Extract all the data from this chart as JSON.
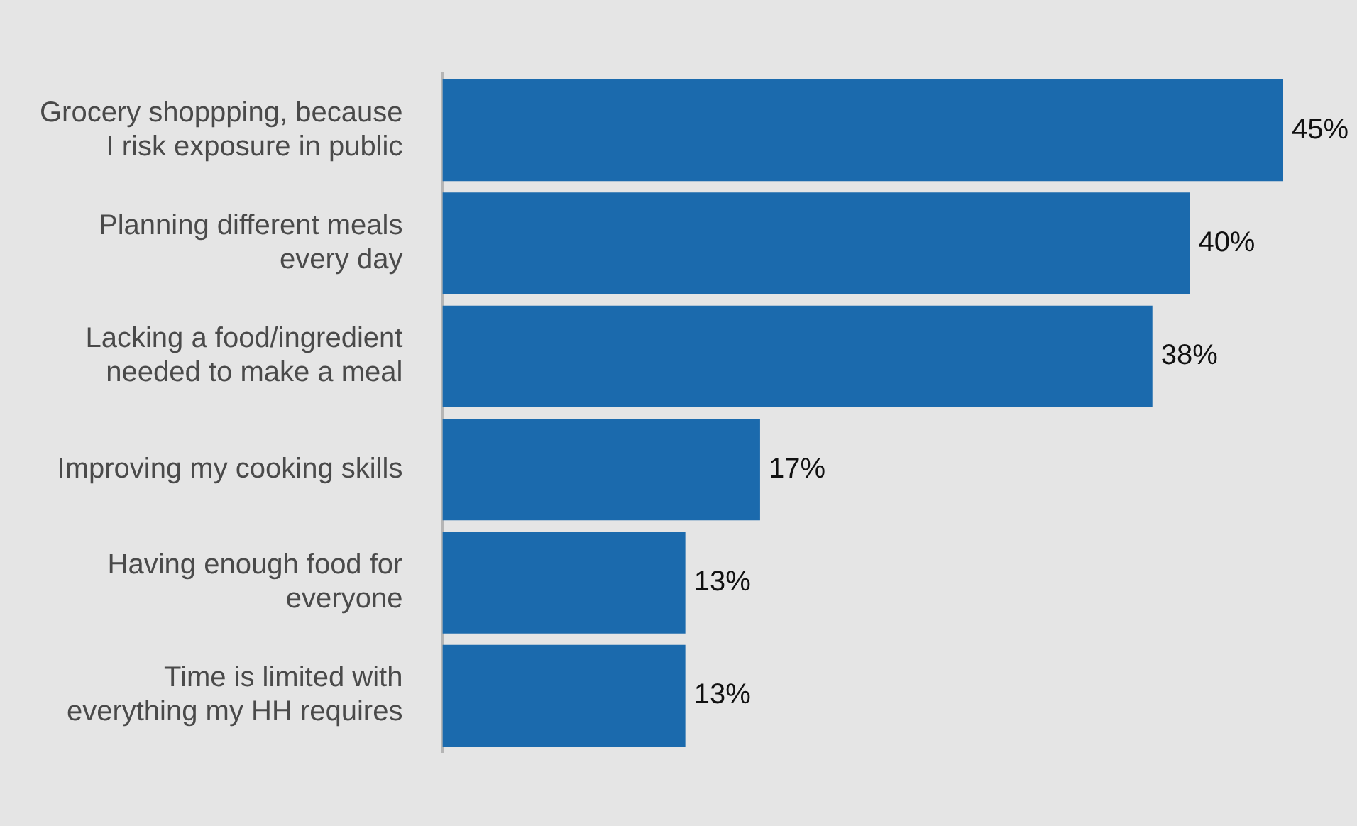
{
  "chart_data": {
    "type": "bar",
    "orientation": "horizontal",
    "categories": [
      "Grocery shoppping, because I risk exposure in public",
      "Planning different meals every day",
      "Lacking a food/ingredient needed to make a meal",
      "Improving my cooking skills",
      "Having enough food for everyone",
      "Time is limited with everything my HH requires"
    ],
    "values": [
      45,
      40,
      38,
      17,
      13,
      13
    ],
    "value_labels": [
      "45%",
      "40%",
      "38%",
      "17%",
      "13%",
      "13%"
    ],
    "color": "#1b6aad"
  }
}
